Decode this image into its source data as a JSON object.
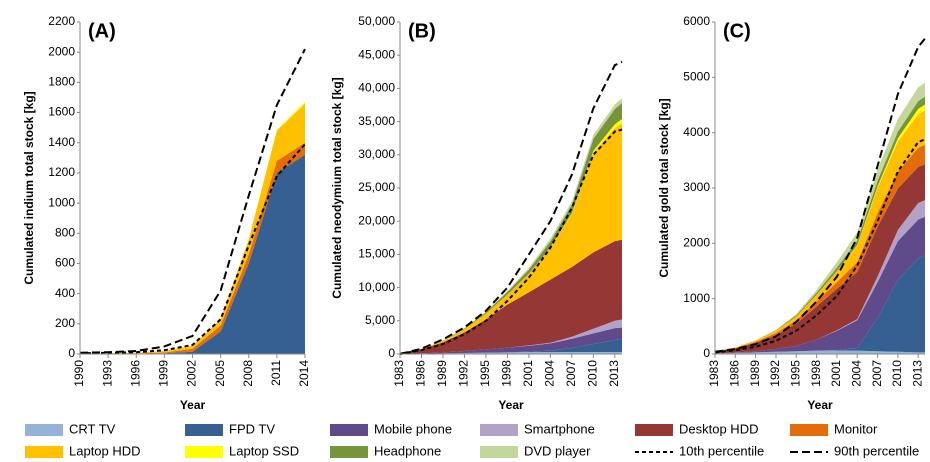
{
  "chart_data": [
    {
      "type": "area",
      "panel_label": "(A)",
      "y_label": "Cumulated indium total stock [kg]",
      "x_label": "Year",
      "x": [
        1990,
        1993,
        1996,
        1999,
        2002,
        2005,
        2008,
        2011,
        2014
      ],
      "xlim": [
        1990,
        2014
      ],
      "xticks": [
        1990,
        1993,
        1996,
        1999,
        2002,
        2005,
        2008,
        2011,
        2014
      ],
      "ylim": [
        0,
        2200
      ],
      "yticks": [
        0,
        200,
        400,
        600,
        800,
        1000,
        1200,
        1400,
        1600,
        1800,
        2000,
        2200
      ],
      "series": [
        {
          "name": "FPD TV",
          "color": "#376092",
          "values": [
            0,
            0,
            2,
            5,
            15,
            150,
            600,
            1200,
            1320
          ]
        },
        {
          "name": "Monitor",
          "color": "#e46c0a",
          "values": [
            0,
            1,
            2,
            5,
            20,
            40,
            60,
            80,
            80
          ]
        },
        {
          "name": "Laptop HDD",
          "color": "#ffc000",
          "values": [
            2,
            3,
            5,
            10,
            20,
            40,
            100,
            200,
            260
          ]
        },
        {
          "name": "Laptop SSD",
          "color": "#ffff00",
          "values": [
            0,
            0,
            0,
            0,
            0,
            0,
            2,
            5,
            10
          ]
        },
        {
          "name": "10th percentile",
          "type": "line",
          "dash": "short",
          "color": "#000000",
          "values": [
            5,
            8,
            12,
            25,
            60,
            230,
            720,
            1180,
            1390
          ]
        },
        {
          "name": "90th percentile",
          "type": "line",
          "dash": "long",
          "color": "#000000",
          "values": [
            8,
            12,
            20,
            50,
            120,
            420,
            1050,
            1650,
            2020
          ]
        }
      ]
    },
    {
      "type": "area",
      "panel_label": "(B)",
      "y_label": "Cumulated neodymium total stock [kg]",
      "x_label": "Year",
      "x": [
        1983,
        1986,
        1989,
        1992,
        1995,
        1998,
        2001,
        2004,
        2007,
        2010,
        2013,
        2014
      ],
      "xlim": [
        1983,
        2014
      ],
      "xticks": [
        1983,
        1986,
        1989,
        1992,
        1995,
        1998,
        2001,
        2004,
        2007,
        2010,
        2013
      ],
      "ylim": [
        0,
        50000
      ],
      "yticks": [
        0,
        {
          "value": 5000,
          "label": "5,000"
        },
        {
          "value": 10000,
          "label": "10,000"
        },
        {
          "value": 15000,
          "label": "15,000"
        },
        {
          "value": 20000,
          "label": "20,000"
        },
        {
          "value": 25000,
          "label": "25,000"
        },
        {
          "value": 30000,
          "label": "30,000"
        },
        {
          "value": 35000,
          "label": "35,000"
        },
        {
          "value": 40000,
          "label": "40,000"
        },
        {
          "value": 45000,
          "label": "45,000"
        },
        {
          "value": 50000,
          "label": "50,000"
        }
      ],
      "series": [
        {
          "name": "CRT TV",
          "color": "#95b3d7",
          "values": [
            0,
            50,
            100,
            150,
            200,
            250,
            300,
            300,
            300,
            300,
            300,
            300
          ]
        },
        {
          "name": "FPD TV",
          "color": "#376092",
          "values": [
            0,
            0,
            0,
            0,
            0,
            0,
            50,
            200,
            600,
            1200,
            1800,
            1900
          ]
        },
        {
          "name": "Mobile phone",
          "color": "#5f4a8b",
          "values": [
            0,
            50,
            150,
            300,
            500,
            700,
            900,
            1100,
            1400,
            1600,
            1800,
            1800
          ]
        },
        {
          "name": "Smartphone",
          "color": "#b3a2c7",
          "values": [
            0,
            0,
            0,
            0,
            0,
            0,
            50,
            100,
            300,
            700,
            1100,
            1200
          ]
        },
        {
          "name": "Desktop HDD",
          "color": "#953735",
          "values": [
            200,
            600,
            1500,
            2800,
            4500,
            6500,
            8000,
            9500,
            10500,
            11500,
            12000,
            12000
          ]
        },
        {
          "name": "Laptop HDD",
          "color": "#ffc000",
          "values": [
            0,
            50,
            200,
            500,
            900,
            1500,
            2800,
            4800,
            8000,
            15000,
            17000,
            17500
          ]
        },
        {
          "name": "Laptop SSD",
          "color": "#ffff00",
          "values": [
            0,
            0,
            0,
            0,
            0,
            0,
            0,
            50,
            100,
            300,
            600,
            700
          ]
        },
        {
          "name": "Headphone",
          "color": "#77933c",
          "values": [
            0,
            0,
            50,
            100,
            200,
            400,
            600,
            900,
            1300,
            1800,
            2300,
            2400
          ]
        },
        {
          "name": "DVD player",
          "color": "#c3d69b",
          "values": [
            0,
            0,
            0,
            0,
            50,
            150,
            300,
            400,
            500,
            600,
            700,
            700
          ]
        },
        {
          "name": "10th percentile",
          "type": "line",
          "dash": "short",
          "color": "#000000",
          "values": [
            0,
            600,
            1500,
            3000,
            5000,
            8000,
            11500,
            16000,
            22000,
            30000,
            33500,
            33800
          ]
        },
        {
          "name": "90th percentile",
          "type": "line",
          "dash": "long",
          "color": "#000000",
          "values": [
            0,
            800,
            2200,
            4000,
            6500,
            10000,
            15000,
            20000,
            27000,
            37000,
            43500,
            44000
          ]
        }
      ]
    },
    {
      "type": "area",
      "panel_label": "(C)",
      "y_label": "Cumulated gold total stock [kg]",
      "x_label": "Year",
      "x": [
        1983,
        1986,
        1989,
        1992,
        1995,
        1998,
        2001,
        2004,
        2007,
        2010,
        2013,
        2014
      ],
      "xlim": [
        1983,
        2014
      ],
      "xticks": [
        1983,
        1986,
        1989,
        1992,
        1995,
        1998,
        2001,
        2004,
        2007,
        2010,
        2013
      ],
      "ylim": [
        0,
        6000
      ],
      "yticks": [
        0,
        1000,
        2000,
        3000,
        4000,
        5000,
        6000
      ],
      "series": [
        {
          "name": "CRT TV",
          "color": "#95b3d7",
          "values": [
            10,
            20,
            30,
            40,
            50,
            60,
            60,
            60,
            50,
            40,
            30,
            30
          ]
        },
        {
          "name": "FPD TV",
          "color": "#376092",
          "values": [
            0,
            0,
            0,
            0,
            0,
            0,
            10,
            50,
            600,
            1300,
            1700,
            1750
          ]
        },
        {
          "name": "Mobile phone",
          "color": "#5f4a8b",
          "values": [
            0,
            10,
            20,
            50,
            100,
            200,
            350,
            500,
            650,
            700,
            700,
            700
          ]
        },
        {
          "name": "Smartphone",
          "color": "#b3a2c7",
          "values": [
            0,
            0,
            0,
            0,
            0,
            0,
            10,
            20,
            100,
            200,
            300,
            300
          ]
        },
        {
          "name": "Desktop HDD",
          "color": "#953735",
          "values": [
            30,
            70,
            150,
            250,
            400,
            600,
            750,
            850,
            900,
            750,
            650,
            650
          ]
        },
        {
          "name": "Monitor",
          "color": "#e46c0a",
          "values": [
            5,
            10,
            20,
            40,
            60,
            90,
            120,
            180,
            250,
            300,
            350,
            350
          ]
        },
        {
          "name": "Laptop HDD",
          "color": "#ffc000",
          "values": [
            5,
            10,
            20,
            40,
            70,
            120,
            200,
            300,
            450,
            550,
            600,
            620
          ]
        },
        {
          "name": "Laptop SSD",
          "color": "#ffff00",
          "values": [
            0,
            0,
            0,
            0,
            0,
            0,
            0,
            10,
            30,
            60,
            100,
            110
          ]
        },
        {
          "name": "Headphone",
          "color": "#77933c",
          "values": [
            0,
            0,
            5,
            10,
            20,
            40,
            60,
            80,
            100,
            120,
            140,
            140
          ]
        },
        {
          "name": "DVD player",
          "color": "#c3d69b",
          "values": [
            0,
            0,
            0,
            5,
            20,
            50,
            100,
            150,
            200,
            230,
            250,
            250
          ]
        },
        {
          "name": "10th percentile",
          "type": "line",
          "dash": "short",
          "color": "#000000",
          "values": [
            30,
            70,
            130,
            240,
            420,
            700,
            1050,
            1600,
            2400,
            3300,
            3830,
            3880
          ]
        },
        {
          "name": "90th percentile",
          "type": "line",
          "dash": "long",
          "color": "#000000",
          "values": [
            40,
            90,
            180,
            320,
            580,
            950,
            1400,
            2100,
            3400,
            4700,
            5550,
            5700
          ]
        }
      ]
    }
  ]
}
